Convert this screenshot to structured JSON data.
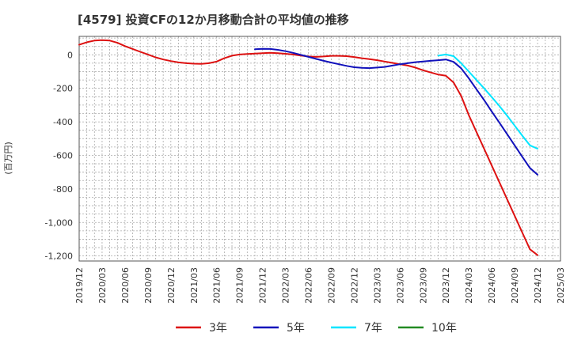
{
  "chart_data": {
    "type": "line",
    "title": "[4579]  投資CFの12か月移動合計の平均値の推移",
    "ylabel": "(百万円)",
    "xlabel": "",
    "ylim": [
      -1230,
      110
    ],
    "yticks": [
      0,
      -200,
      -400,
      -600,
      -800,
      -1000,
      -1200
    ],
    "ytick_labels": [
      "0",
      "-200",
      "-400",
      "-600",
      "-800",
      "-1,000",
      "-1,200"
    ],
    "x_start": "2019/12",
    "x_end": "2025/03",
    "xtick_labels": [
      "2019/12",
      "2020/03",
      "2020/06",
      "2020/09",
      "2020/12",
      "2021/03",
      "2021/06",
      "2021/09",
      "2021/12",
      "2022/03",
      "2022/06",
      "2022/09",
      "2022/12",
      "2023/03",
      "2023/06",
      "2023/09",
      "2023/12",
      "2024/03",
      "2024/06",
      "2024/09",
      "2024/12",
      "2025/03"
    ],
    "grid": true,
    "legend_position": "bottom",
    "series": [
      {
        "name": "3年",
        "color": "#dd1111",
        "x": [
          "2019/12",
          "2020/01",
          "2020/02",
          "2020/03",
          "2020/04",
          "2020/05",
          "2020/06",
          "2020/07",
          "2020/08",
          "2020/09",
          "2020/10",
          "2020/11",
          "2020/12",
          "2021/01",
          "2021/02",
          "2021/03",
          "2021/04",
          "2021/05",
          "2021/06",
          "2021/07",
          "2021/08",
          "2021/09",
          "2021/10",
          "2021/11",
          "2021/12",
          "2022/01",
          "2022/02",
          "2022/03",
          "2022/04",
          "2022/05",
          "2022/06",
          "2022/07",
          "2022/08",
          "2022/09",
          "2022/10",
          "2022/11",
          "2022/12",
          "2023/01",
          "2023/02",
          "2023/03",
          "2023/04",
          "2023/05",
          "2023/06",
          "2023/07",
          "2023/08",
          "2023/09",
          "2023/10",
          "2023/11",
          "2023/12",
          "2024/01",
          "2024/02",
          "2024/03",
          "2024/04",
          "2024/05",
          "2024/06",
          "2024/07",
          "2024/08",
          "2024/09",
          "2024/10",
          "2024/11",
          "2024/12"
        ],
        "values": [
          60,
          75,
          85,
          88,
          85,
          72,
          52,
          35,
          18,
          2,
          -15,
          -28,
          -37,
          -45,
          -50,
          -53,
          -54,
          -50,
          -40,
          -20,
          -5,
          2,
          5,
          7,
          10,
          12,
          10,
          6,
          2,
          -4,
          -10,
          -12,
          -10,
          -6,
          -6,
          -8,
          -13,
          -20,
          -26,
          -32,
          -40,
          -48,
          -56,
          -64,
          -76,
          -92,
          -105,
          -118,
          -125,
          -165,
          -245,
          -360,
          -460,
          -560,
          -660,
          -760,
          -860,
          -960,
          -1060,
          -1160,
          -1195
        ]
      },
      {
        "name": "5年",
        "color": "#1111bb",
        "x": [
          "2021/11",
          "2021/12",
          "2022/01",
          "2022/02",
          "2022/03",
          "2022/04",
          "2022/05",
          "2022/06",
          "2022/07",
          "2022/08",
          "2022/09",
          "2022/10",
          "2022/11",
          "2022/12",
          "2023/01",
          "2023/02",
          "2023/03",
          "2023/04",
          "2023/05",
          "2023/06",
          "2023/07",
          "2023/08",
          "2023/09",
          "2023/10",
          "2023/11",
          "2023/12",
          "2024/01",
          "2024/02",
          "2024/03",
          "2024/04",
          "2024/05",
          "2024/06",
          "2024/07",
          "2024/08",
          "2024/09",
          "2024/10",
          "2024/11",
          "2024/12"
        ],
        "values": [
          33,
          36,
          35,
          30,
          22,
          12,
          0,
          -12,
          -24,
          -36,
          -46,
          -56,
          -66,
          -74,
          -78,
          -79,
          -76,
          -72,
          -64,
          -56,
          -50,
          -44,
          -40,
          -36,
          -32,
          -28,
          -42,
          -80,
          -140,
          -205,
          -270,
          -338,
          -405,
          -472,
          -540,
          -608,
          -675,
          -715
        ]
      },
      {
        "name": "7年",
        "color": "#00e5ff",
        "x": [
          "2023/11",
          "2023/12",
          "2024/01",
          "2024/02",
          "2024/03",
          "2024/04",
          "2024/05",
          "2024/06",
          "2024/07",
          "2024/08",
          "2024/09",
          "2024/10",
          "2024/11",
          "2024/12"
        ],
        "values": [
          -5,
          2,
          -8,
          -50,
          -100,
          -150,
          -200,
          -252,
          -305,
          -362,
          -422,
          -482,
          -540,
          -560
        ]
      },
      {
        "name": "10年",
        "color": "#228b22",
        "x": [],
        "values": []
      }
    ]
  }
}
